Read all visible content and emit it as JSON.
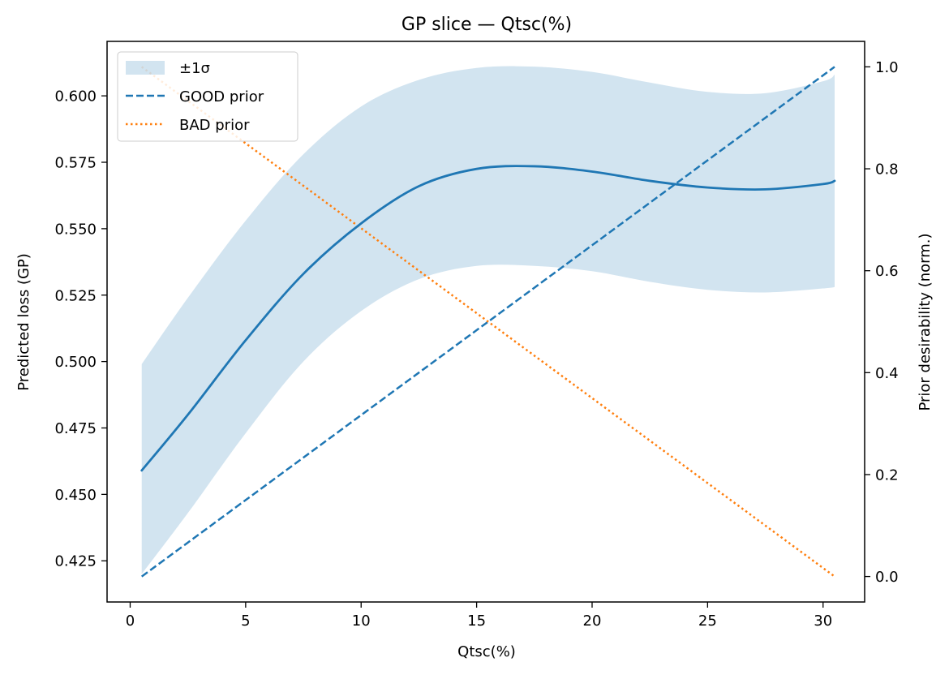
{
  "chart_data": {
    "type": "line",
    "title": "GP slice — Qtsc(%)",
    "xlabel": "Qtsc(%)",
    "ylabel": "Predicted loss (GP)",
    "y2label": "Prior desirability (norm.)",
    "xlim": [
      -1,
      31.8
    ],
    "ylim": [
      0.4095,
      0.6205
    ],
    "y2lim": [
      -0.05,
      1.05
    ],
    "x_ticks": [
      0,
      5,
      10,
      15,
      20,
      25,
      30
    ],
    "y_ticks": [
      0.425,
      0.45,
      0.475,
      0.5,
      0.525,
      0.55,
      0.575,
      0.6
    ],
    "y_tick_labels": [
      "0.425",
      "0.450",
      "0.475",
      "0.500",
      "0.525",
      "0.550",
      "0.575",
      "0.600"
    ],
    "y2_ticks": [
      0.0,
      0.2,
      0.4,
      0.6,
      0.8,
      1.0
    ],
    "y2_tick_labels": [
      "0.0",
      "0.2",
      "0.4",
      "0.6",
      "0.8",
      "1.0"
    ],
    "grid": false,
    "legend_position": "top-left",
    "gp": {
      "x": [
        0.5,
        2.5,
        5,
        7.5,
        10,
        12.5,
        15,
        17.5,
        20,
        22.5,
        25,
        27.5,
        30,
        30.5
      ],
      "mean": [
        0.459,
        0.48,
        0.508,
        0.533,
        0.552,
        0.566,
        0.5725,
        0.5735,
        0.5715,
        0.568,
        0.5655,
        0.5648,
        0.5668,
        0.568
      ],
      "lower": [
        0.42,
        0.443,
        0.473,
        0.5,
        0.519,
        0.531,
        0.536,
        0.536,
        0.534,
        0.53,
        0.527,
        0.526,
        0.5275,
        0.528
      ],
      "upper": [
        0.499,
        0.524,
        0.553,
        0.578,
        0.596,
        0.606,
        0.6105,
        0.611,
        0.609,
        0.605,
        0.6015,
        0.601,
        0.6055,
        0.608
      ],
      "color": "#1f77b4",
      "band_color": "#1f77b4"
    },
    "series": [
      {
        "name": "±1σ",
        "style": "band",
        "color": "#1f77b4"
      },
      {
        "name": "GOOD prior",
        "style": "dashed",
        "axis": "right",
        "x": [
          0.5,
          30.5
        ],
        "values": [
          0.0,
          1.0
        ],
        "color": "#1f77b4"
      },
      {
        "name": "BAD prior",
        "style": "dotted",
        "axis": "right",
        "x": [
          0.5,
          30.5
        ],
        "values": [
          1.0,
          0.0
        ],
        "color": "#ff7f0e"
      }
    ]
  }
}
